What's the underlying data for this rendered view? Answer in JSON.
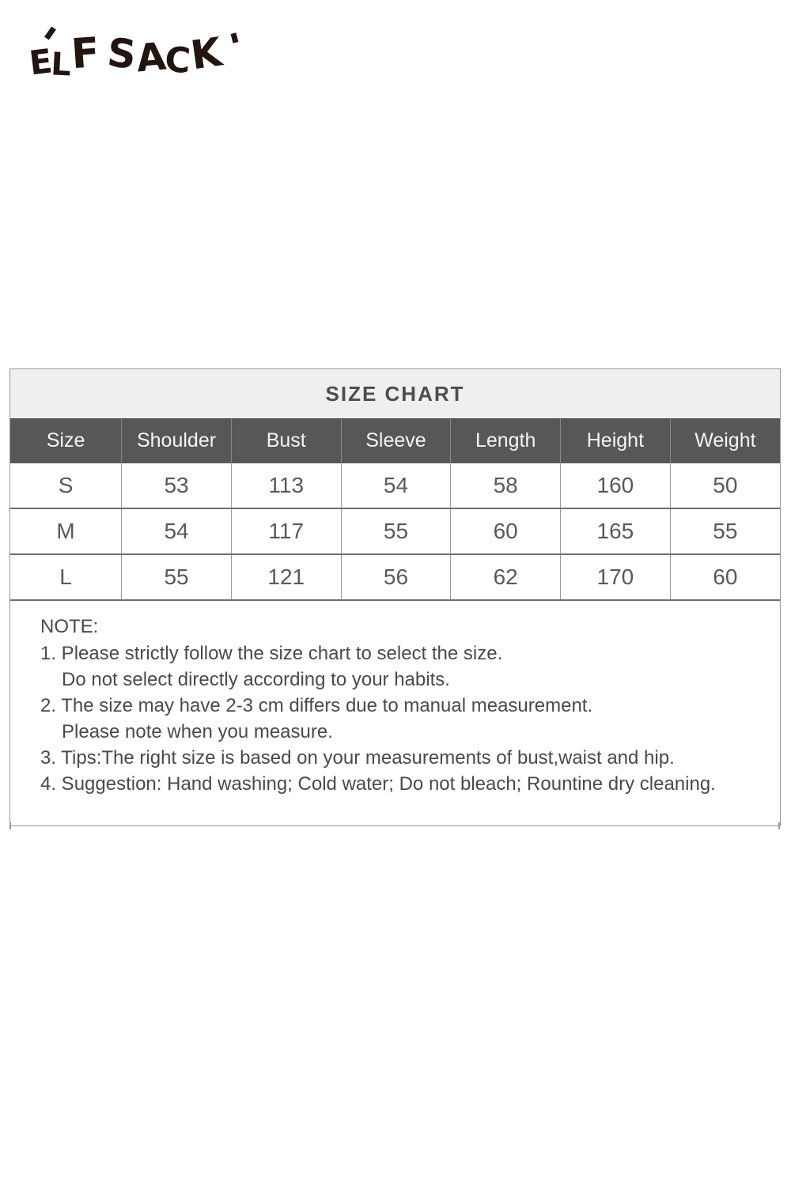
{
  "brand": {
    "logo_text": "ELF SACK",
    "words": [
      "ELF",
      "SACK"
    ]
  },
  "size_chart": {
    "title": "SIZE CHART",
    "columns": [
      "Size",
      "Shoulder",
      "Bust",
      "Sleeve",
      "Length",
      "Height",
      "Weight"
    ],
    "rows": [
      [
        "S",
        "53",
        "113",
        "54",
        "58",
        "160",
        "50"
      ],
      [
        "M",
        "54",
        "117",
        "55",
        "60",
        "165",
        "55"
      ],
      [
        "L",
        "55",
        "121",
        "56",
        "62",
        "170",
        "60"
      ]
    ]
  },
  "notes": {
    "heading": "NOTE:",
    "lines": [
      {
        "text": "1. Please strictly follow the size chart to select the size.",
        "indent": false
      },
      {
        "text": "Do not select directly according to your habits.",
        "indent": true
      },
      {
        "text": "2. The size may have 2-3 cm differs due to manual measurement.",
        "indent": false
      },
      {
        "text": "Please note when you measure.",
        "indent": true
      },
      {
        "text": "3. Tips:The right size is based on your measurements of bust,waist and hip.",
        "indent": false
      },
      {
        "text": "4. Suggestion: Hand washing; Cold water; Do not bleach; Rountine dry cleaning.",
        "indent": false
      }
    ]
  },
  "colors": {
    "header_background": "#575757",
    "header_text": "#f4f4f4",
    "title_background": "#efefef",
    "title_text": "#4d4d4d",
    "cell_text": "#595959",
    "note_text": "#4a4a4a",
    "border": "#9a9a9a",
    "logo_text": "#221510"
  }
}
